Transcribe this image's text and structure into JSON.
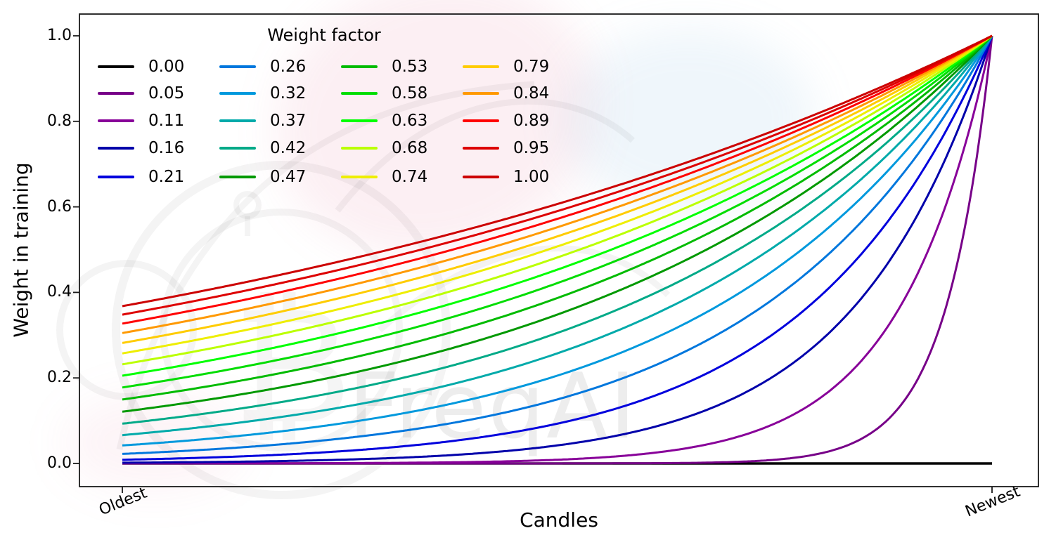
{
  "watermark": {
    "text": "FreqAI",
    "symbol": "₿"
  },
  "layout_colors": {
    "background": "#ffffff",
    "spine": "#1a1a1a",
    "text": "#000000",
    "watermark_gray": "rgba(0,0,0,0.07)"
  },
  "chart_data": {
    "type": "line",
    "title": "",
    "xlabel": "Candles",
    "ylabel": "Weight in training",
    "x_tick_labels": [
      "Oldest",
      "Newest"
    ],
    "y_ticks": [
      0.0,
      0.2,
      0.4,
      0.6,
      0.8,
      1.0
    ],
    "y_tick_labels": [
      "0.0",
      "0.2",
      "0.4",
      "0.6",
      "0.8",
      "1.0"
    ],
    "ylim": [
      0,
      1
    ],
    "grid": false,
    "legend": {
      "title": "Weight factor",
      "position": "upper-left",
      "ncols": 4,
      "fill_order": "column-major"
    },
    "curve_formula": "weight(x) = exp(-(1-x)/weight_factor) with x in [0,1] from Oldest to Newest; every curve with weight_factor>0 reaches 1.0 at Newest; weight_factor=0 stays at 0",
    "series": [
      {
        "label": "0.00",
        "weight_factor": 0.0,
        "color": "#000000",
        "value_at_oldest": 0.0
      },
      {
        "label": "0.05",
        "weight_factor": 0.0526,
        "color": "#770088",
        "value_at_oldest": 0.0
      },
      {
        "label": "0.11",
        "weight_factor": 0.1053,
        "color": "#880099",
        "value_at_oldest": 0.0001
      },
      {
        "label": "0.16",
        "weight_factor": 0.1579,
        "color": "#0000AA",
        "value_at_oldest": 0.0018
      },
      {
        "label": "0.21",
        "weight_factor": 0.2105,
        "color": "#0000DD",
        "value_at_oldest": 0.0086
      },
      {
        "label": "0.26",
        "weight_factor": 0.2632,
        "color": "#0077DD",
        "value_at_oldest": 0.0224
      },
      {
        "label": "0.32",
        "weight_factor": 0.3158,
        "color": "#0099DD",
        "value_at_oldest": 0.0421
      },
      {
        "label": "0.37",
        "weight_factor": 0.3684,
        "color": "#00AAAA",
        "value_at_oldest": 0.0662
      },
      {
        "label": "0.42",
        "weight_factor": 0.4211,
        "color": "#00AA88",
        "value_at_oldest": 0.093
      },
      {
        "label": "0.47",
        "weight_factor": 0.4737,
        "color": "#009900",
        "value_at_oldest": 0.1211
      },
      {
        "label": "0.53",
        "weight_factor": 0.5263,
        "color": "#00BB00",
        "value_at_oldest": 0.1496
      },
      {
        "label": "0.58",
        "weight_factor": 0.5789,
        "color": "#00DD00",
        "value_at_oldest": 0.1778
      },
      {
        "label": "0.63",
        "weight_factor": 0.6316,
        "color": "#00FF00",
        "value_at_oldest": 0.2053
      },
      {
        "label": "0.68",
        "weight_factor": 0.6842,
        "color": "#BBFF00",
        "value_at_oldest": 0.2319
      },
      {
        "label": "0.74",
        "weight_factor": 0.7368,
        "color": "#EEEE00",
        "value_at_oldest": 0.2574
      },
      {
        "label": "0.79",
        "weight_factor": 0.7895,
        "color": "#FFCC00",
        "value_at_oldest": 0.2817
      },
      {
        "label": "0.84",
        "weight_factor": 0.8421,
        "color": "#FF9900",
        "value_at_oldest": 0.305
      },
      {
        "label": "0.89",
        "weight_factor": 0.8947,
        "color": "#FF0000",
        "value_at_oldest": 0.3271
      },
      {
        "label": "0.95",
        "weight_factor": 0.9474,
        "color": "#DD0000",
        "value_at_oldest": 0.348
      },
      {
        "label": "1.00",
        "weight_factor": 1.0,
        "color": "#CC0000",
        "value_at_oldest": 0.3679
      }
    ]
  }
}
